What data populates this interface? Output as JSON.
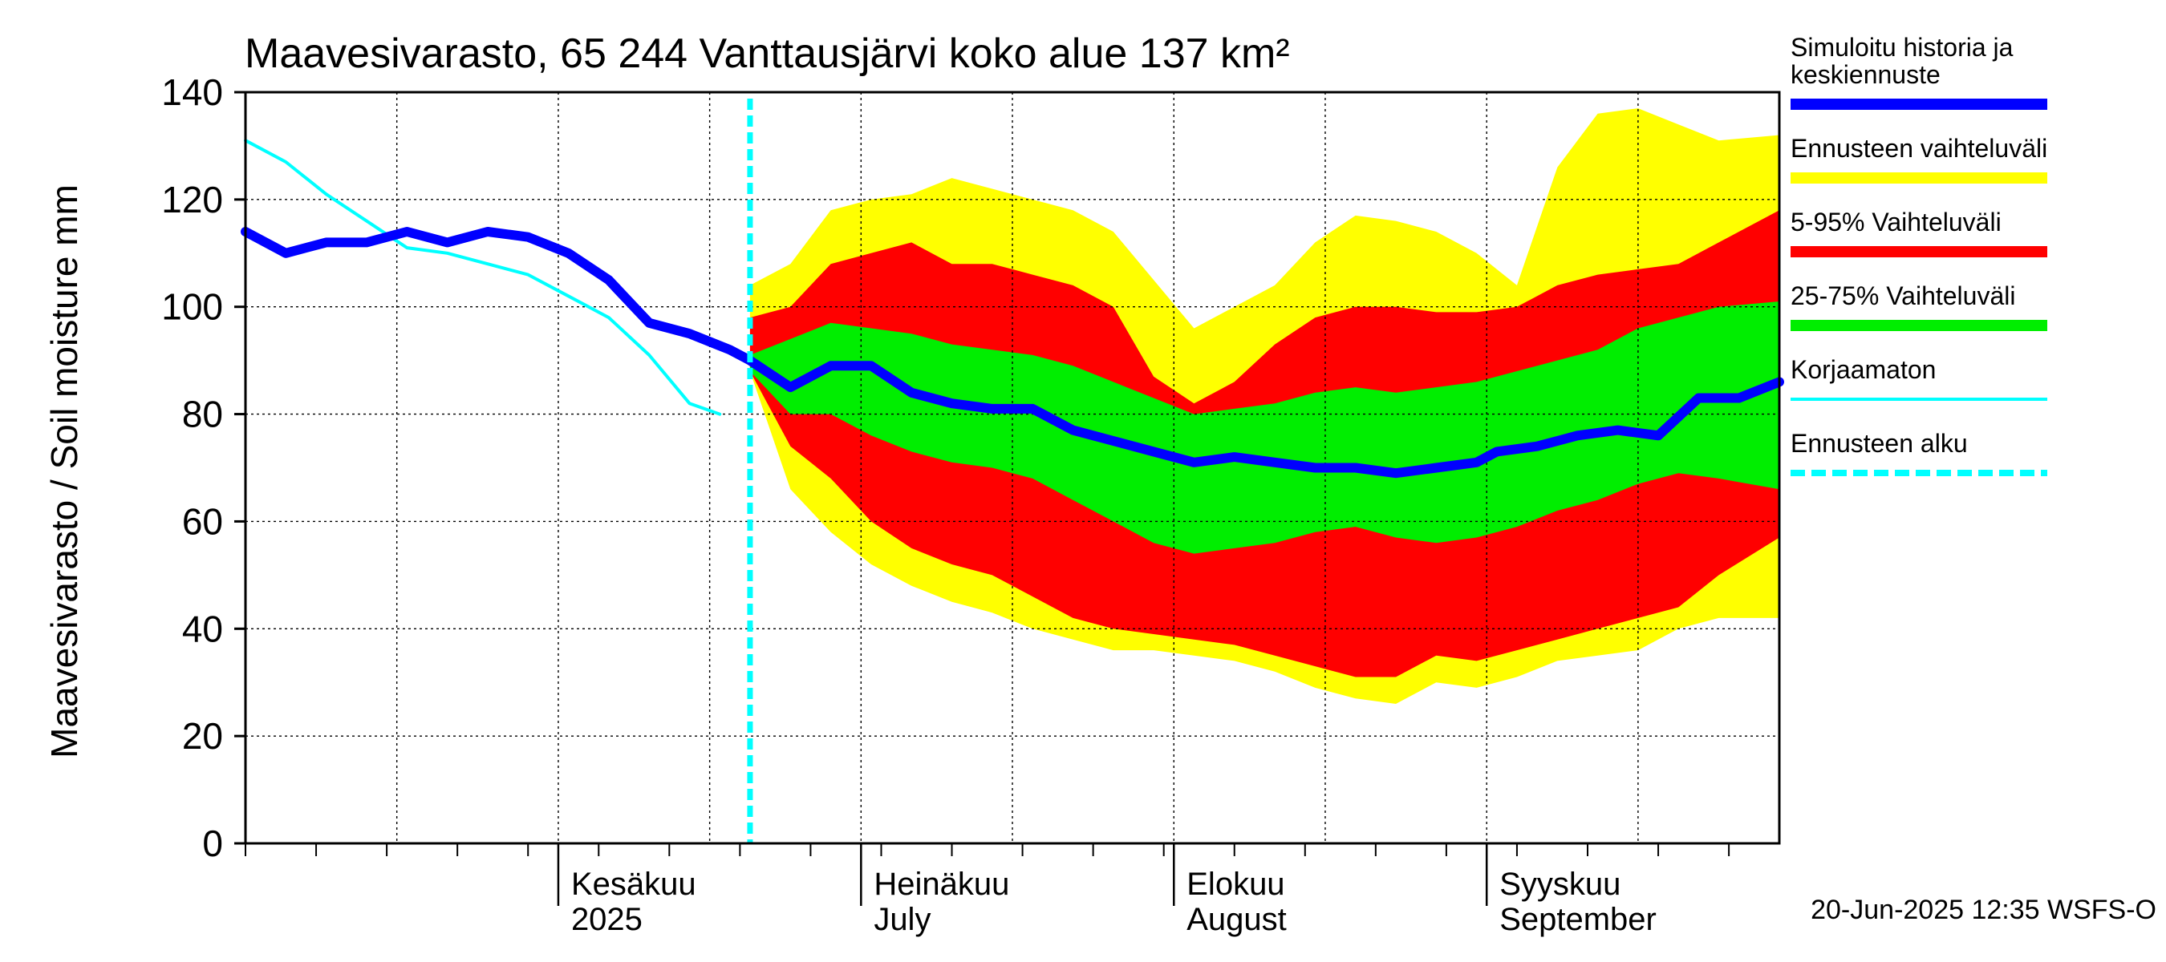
{
  "chart_data": {
    "type": "area",
    "title": "Maavesivarasto, 65 244 Vanttausjärvi koko alue 137 km²",
    "ylabel": "Maavesivarasto / Soil moisture   mm",
    "ylim": [
      0,
      140
    ],
    "yticks": [
      0,
      20,
      40,
      60,
      80,
      100,
      120,
      140
    ],
    "grid": true,
    "legend_position": "right",
    "x_start": "2025-05-01",
    "x_end": "2025-09-30",
    "forecast_start": "2025-06-20",
    "month_labels": [
      {
        "date": "2025-06-01",
        "line1": "Kesäkuu",
        "line2": "2025"
      },
      {
        "date": "2025-07-01",
        "line1": "Heinäkuu",
        "line2": "July"
      },
      {
        "date": "2025-08-01",
        "line1": "Elokuu",
        "line2": "August"
      },
      {
        "date": "2025-09-01",
        "line1": "Syyskuu",
        "line2": "September"
      }
    ],
    "footer": "20-Jun-2025 12:35 WSFS-O",
    "legend": [
      {
        "label": "Simuloitu historia ja keskiennuste",
        "color": "#0000ff",
        "style": "thick"
      },
      {
        "label": "Ennusteen vaihteluväli",
        "color": "#ffff00",
        "style": "band"
      },
      {
        "label": "5-95% Vaihteluväli",
        "color": "#ff0000",
        "style": "band"
      },
      {
        "label": "25-75% Vaihteluväli",
        "color": "#00ee00",
        "style": "band"
      },
      {
        "label": "Korjaamaton",
        "color": "#00ffff",
        "style": "thin"
      },
      {
        "label": "Ennusteen alku",
        "color": "#00ffff",
        "style": "dashed"
      }
    ],
    "series": [
      {
        "name": "Simuloitu historia ja keskiennuste",
        "x": [
          "2025-05-01",
          "2025-05-05",
          "2025-05-09",
          "2025-05-13",
          "2025-05-17",
          "2025-05-21",
          "2025-05-25",
          "2025-05-29",
          "2025-06-02",
          "2025-06-06",
          "2025-06-10",
          "2025-06-14",
          "2025-06-18",
          "2025-06-20",
          "2025-06-24",
          "2025-06-28",
          "2025-07-02",
          "2025-07-06",
          "2025-07-10",
          "2025-07-14",
          "2025-07-18",
          "2025-07-22",
          "2025-07-26",
          "2025-07-30",
          "2025-08-03",
          "2025-08-07",
          "2025-08-11",
          "2025-08-15",
          "2025-08-19",
          "2025-08-23",
          "2025-08-27",
          "2025-08-31",
          "2025-09-02",
          "2025-09-06",
          "2025-09-08",
          "2025-09-10",
          "2025-09-14",
          "2025-09-18",
          "2025-09-22",
          "2025-09-26",
          "2025-09-30"
        ],
        "values": [
          114,
          110,
          112,
          112,
          114,
          112,
          114,
          113,
          110,
          105,
          97,
          95,
          92,
          90,
          85,
          89,
          89,
          84,
          82,
          81,
          81,
          77,
          75,
          73,
          71,
          72,
          71,
          70,
          70,
          69,
          70,
          71,
          73,
          74,
          75,
          76,
          77,
          76,
          83,
          83,
          86
        ]
      },
      {
        "name": "Korjaamaton",
        "x": [
          "2025-05-01",
          "2025-05-05",
          "2025-05-09",
          "2025-05-13",
          "2025-05-17",
          "2025-05-21",
          "2025-05-25",
          "2025-05-29",
          "2025-06-02",
          "2025-06-06",
          "2025-06-10",
          "2025-06-14",
          "2025-06-17"
        ],
        "values": [
          131,
          127,
          121,
          116,
          111,
          110,
          108,
          106,
          102,
          98,
          91,
          82,
          80
        ]
      }
    ],
    "bands": [
      {
        "name": "Ennusteen vaihteluväli",
        "x": [
          "2025-06-20",
          "2025-06-24",
          "2025-06-28",
          "2025-07-02",
          "2025-07-06",
          "2025-07-10",
          "2025-07-14",
          "2025-07-18",
          "2025-07-22",
          "2025-07-26",
          "2025-07-30",
          "2025-08-03",
          "2025-08-07",
          "2025-08-11",
          "2025-08-15",
          "2025-08-19",
          "2025-08-23",
          "2025-08-27",
          "2025-08-31",
          "2025-09-04",
          "2025-09-08",
          "2025-09-12",
          "2025-09-16",
          "2025-09-20",
          "2025-09-24",
          "2025-09-30"
        ],
        "low": [
          88,
          66,
          58,
          52,
          48,
          45,
          43,
          40,
          38,
          36,
          36,
          35,
          34,
          32,
          29,
          27,
          26,
          30,
          29,
          31,
          34,
          35,
          36,
          40,
          42,
          42
        ],
        "high": [
          104,
          108,
          118,
          120,
          121,
          124,
          122,
          120,
          118,
          114,
          105,
          96,
          100,
          104,
          112,
          117,
          116,
          114,
          110,
          104,
          126,
          136,
          137,
          134,
          131,
          132
        ]
      },
      {
        "name": "5-95% Vaihteluväli",
        "x": [
          "2025-06-20",
          "2025-06-24",
          "2025-06-28",
          "2025-07-02",
          "2025-07-06",
          "2025-07-10",
          "2025-07-14",
          "2025-07-18",
          "2025-07-22",
          "2025-07-26",
          "2025-07-30",
          "2025-08-03",
          "2025-08-07",
          "2025-08-11",
          "2025-08-15",
          "2025-08-19",
          "2025-08-23",
          "2025-08-27",
          "2025-08-31",
          "2025-09-04",
          "2025-09-08",
          "2025-09-12",
          "2025-09-16",
          "2025-09-20",
          "2025-09-24",
          "2025-09-30"
        ],
        "low": [
          88,
          74,
          68,
          60,
          55,
          52,
          50,
          46,
          42,
          40,
          39,
          38,
          37,
          35,
          33,
          31,
          31,
          35,
          34,
          36,
          38,
          40,
          42,
          44,
          50,
          57
        ],
        "high": [
          98,
          100,
          108,
          110,
          112,
          108,
          108,
          106,
          104,
          100,
          87,
          82,
          86,
          93,
          98,
          100,
          100,
          99,
          99,
          100,
          104,
          106,
          107,
          108,
          112,
          118
        ]
      },
      {
        "name": "25-75% Vaihteluväli",
        "x": [
          "2025-06-20",
          "2025-06-24",
          "2025-06-28",
          "2025-07-02",
          "2025-07-06",
          "2025-07-10",
          "2025-07-14",
          "2025-07-18",
          "2025-07-22",
          "2025-07-26",
          "2025-07-30",
          "2025-08-03",
          "2025-08-07",
          "2025-08-11",
          "2025-08-15",
          "2025-08-19",
          "2025-08-23",
          "2025-08-27",
          "2025-08-31",
          "2025-09-04",
          "2025-09-08",
          "2025-09-12",
          "2025-09-16",
          "2025-09-20",
          "2025-09-24",
          "2025-09-30"
        ],
        "low": [
          88,
          80,
          80,
          76,
          73,
          71,
          70,
          68,
          64,
          60,
          56,
          54,
          55,
          56,
          58,
          59,
          57,
          56,
          57,
          59,
          62,
          64,
          67,
          69,
          68,
          66
        ],
        "high": [
          91,
          94,
          97,
          96,
          95,
          93,
          92,
          91,
          89,
          86,
          83,
          80,
          81,
          82,
          84,
          85,
          84,
          85,
          86,
          88,
          90,
          92,
          96,
          98,
          100,
          101
        ]
      }
    ]
  }
}
